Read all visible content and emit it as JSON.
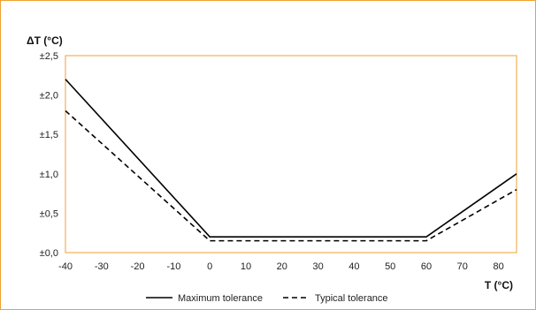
{
  "chart_data": {
    "type": "line",
    "title": "",
    "xlabel": "T (°C)",
    "ylabel": "ΔT (°C)",
    "xlim": [
      -40,
      85
    ],
    "ylim": [
      0,
      2.5
    ],
    "x_ticks": [
      -40,
      -30,
      -20,
      -10,
      0,
      10,
      20,
      30,
      40,
      50,
      60,
      70,
      80
    ],
    "x_tick_labels": [
      "-40",
      "-30",
      "-20",
      "-10",
      "0",
      "10",
      "20",
      "30",
      "40",
      "50",
      "60",
      "70",
      "80"
    ],
    "y_ticks": [
      0,
      0.5,
      1.0,
      1.5,
      2.0,
      2.5
    ],
    "y_tick_labels": [
      "±0,0",
      "±0,5",
      "±1,0",
      "±1,5",
      "±2,0",
      "±2,5"
    ],
    "grid": false,
    "legend_position": "bottom",
    "plot_border_color": "#f0a030",
    "series": [
      {
        "name": "Maximum tolerance",
        "style": "solid",
        "color": "#000000",
        "x": [
          -40,
          0,
          60,
          85
        ],
        "y": [
          2.2,
          0.2,
          0.2,
          1.0
        ]
      },
      {
        "name": "Typical tolerance",
        "style": "dashed",
        "color": "#000000",
        "x": [
          -40,
          0,
          60,
          85
        ],
        "y": [
          1.8,
          0.15,
          0.15,
          0.8
        ]
      }
    ]
  }
}
